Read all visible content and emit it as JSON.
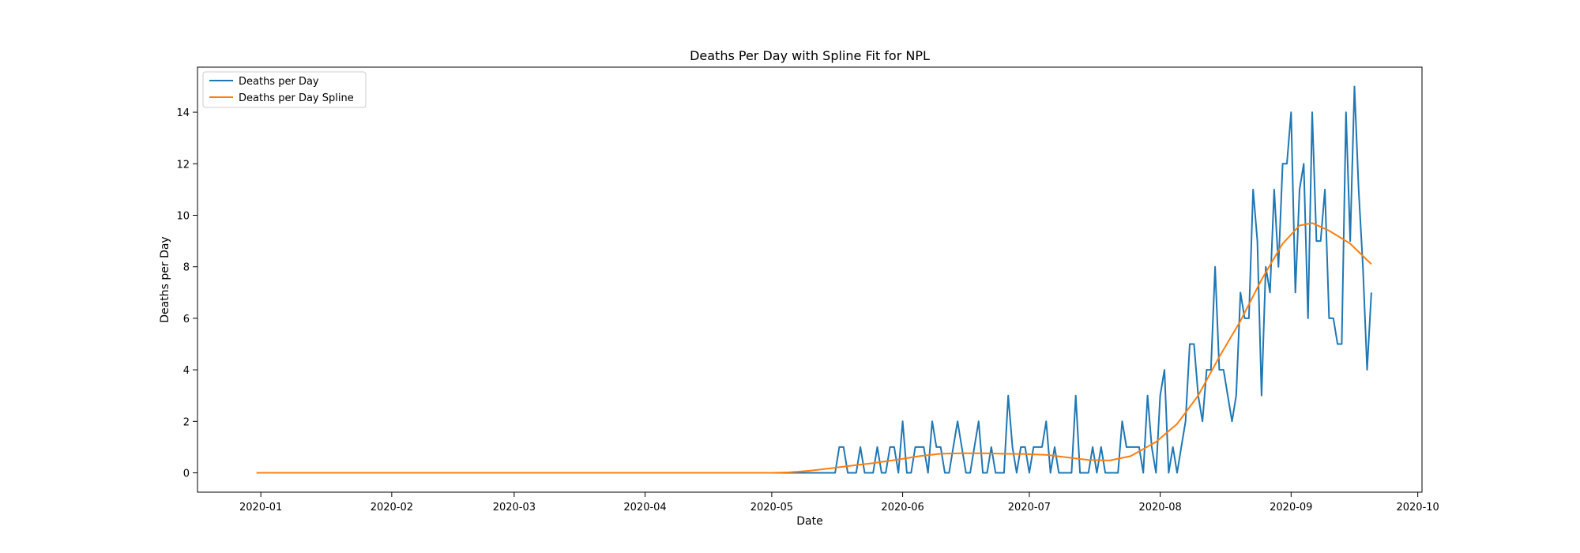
{
  "chart_data": {
    "type": "line",
    "title": "Deaths Per Day with Spline Fit for NPL",
    "xlabel": "Date",
    "ylabel": "Deaths per Day",
    "x_type": "date",
    "xlim": [
      "2019-12-17",
      "2020-10-02"
    ],
    "ylim": [
      -0.75,
      15.75
    ],
    "x_ticks": [
      "2020-01",
      "2020-02",
      "2020-03",
      "2020-04",
      "2020-05",
      "2020-06",
      "2020-07",
      "2020-08",
      "2020-09",
      "2020-10"
    ],
    "x_tick_dates": [
      "2020-01-01",
      "2020-02-01",
      "2020-03-01",
      "2020-04-01",
      "2020-05-01",
      "2020-06-01",
      "2020-07-01",
      "2020-08-01",
      "2020-09-01",
      "2020-10-01"
    ],
    "y_ticks": [
      0,
      2,
      4,
      6,
      8,
      10,
      12,
      14
    ],
    "y_tick_labels": [
      "0",
      "2",
      "4",
      "6",
      "8",
      "10",
      "12",
      "14"
    ],
    "grid": false,
    "legend_position": "top-left",
    "series": [
      {
        "name": "Deaths per Day",
        "color": "#1f77b4",
        "points": [
          [
            "2019-12-31",
            0
          ],
          [
            "2020-05-16",
            0
          ],
          [
            "2020-05-17",
            1
          ],
          [
            "2020-05-18",
            1
          ],
          [
            "2020-05-19",
            0
          ],
          [
            "2020-05-20",
            0
          ],
          [
            "2020-05-21",
            0
          ],
          [
            "2020-05-22",
            1
          ],
          [
            "2020-05-23",
            0
          ],
          [
            "2020-05-24",
            0
          ],
          [
            "2020-05-25",
            0
          ],
          [
            "2020-05-26",
            1
          ],
          [
            "2020-05-27",
            0
          ],
          [
            "2020-05-28",
            0
          ],
          [
            "2020-05-29",
            1
          ],
          [
            "2020-05-30",
            1
          ],
          [
            "2020-05-31",
            0
          ],
          [
            "2020-06-01",
            2
          ],
          [
            "2020-06-02",
            0
          ],
          [
            "2020-06-03",
            0
          ],
          [
            "2020-06-04",
            1
          ],
          [
            "2020-06-05",
            1
          ],
          [
            "2020-06-06",
            1
          ],
          [
            "2020-06-07",
            0
          ],
          [
            "2020-06-08",
            2
          ],
          [
            "2020-06-09",
            1
          ],
          [
            "2020-06-10",
            1
          ],
          [
            "2020-06-11",
            0
          ],
          [
            "2020-06-12",
            0
          ],
          [
            "2020-06-13",
            1
          ],
          [
            "2020-06-14",
            2
          ],
          [
            "2020-06-15",
            1
          ],
          [
            "2020-06-16",
            0
          ],
          [
            "2020-06-17",
            0
          ],
          [
            "2020-06-18",
            1
          ],
          [
            "2020-06-19",
            2
          ],
          [
            "2020-06-20",
            0
          ],
          [
            "2020-06-21",
            0
          ],
          [
            "2020-06-22",
            1
          ],
          [
            "2020-06-23",
            0
          ],
          [
            "2020-06-24",
            0
          ],
          [
            "2020-06-25",
            0
          ],
          [
            "2020-06-26",
            3
          ],
          [
            "2020-06-27",
            1
          ],
          [
            "2020-06-28",
            0
          ],
          [
            "2020-06-29",
            1
          ],
          [
            "2020-06-30",
            1
          ],
          [
            "2020-07-01",
            0
          ],
          [
            "2020-07-02",
            1
          ],
          [
            "2020-07-03",
            1
          ],
          [
            "2020-07-04",
            1
          ],
          [
            "2020-07-05",
            2
          ],
          [
            "2020-07-06",
            0
          ],
          [
            "2020-07-07",
            1
          ],
          [
            "2020-07-08",
            0
          ],
          [
            "2020-07-09",
            0
          ],
          [
            "2020-07-10",
            0
          ],
          [
            "2020-07-11",
            0
          ],
          [
            "2020-07-12",
            3
          ],
          [
            "2020-07-13",
            0
          ],
          [
            "2020-07-14",
            0
          ],
          [
            "2020-07-15",
            0
          ],
          [
            "2020-07-16",
            1
          ],
          [
            "2020-07-17",
            0
          ],
          [
            "2020-07-18",
            1
          ],
          [
            "2020-07-19",
            0
          ],
          [
            "2020-07-20",
            0
          ],
          [
            "2020-07-21",
            0
          ],
          [
            "2020-07-22",
            0
          ],
          [
            "2020-07-23",
            2
          ],
          [
            "2020-07-24",
            1
          ],
          [
            "2020-07-25",
            1
          ],
          [
            "2020-07-26",
            1
          ],
          [
            "2020-07-27",
            1
          ],
          [
            "2020-07-28",
            0
          ],
          [
            "2020-07-29",
            3
          ],
          [
            "2020-07-30",
            1
          ],
          [
            "2020-07-31",
            0
          ],
          [
            "2020-08-01",
            3
          ],
          [
            "2020-08-02",
            4
          ],
          [
            "2020-08-03",
            0
          ],
          [
            "2020-08-04",
            1
          ],
          [
            "2020-08-05",
            0
          ],
          [
            "2020-08-06",
            1
          ],
          [
            "2020-08-07",
            2
          ],
          [
            "2020-08-08",
            5
          ],
          [
            "2020-08-09",
            5
          ],
          [
            "2020-08-10",
            3
          ],
          [
            "2020-08-11",
            2
          ],
          [
            "2020-08-12",
            4
          ],
          [
            "2020-08-13",
            4
          ],
          [
            "2020-08-14",
            8
          ],
          [
            "2020-08-15",
            4
          ],
          [
            "2020-08-16",
            4
          ],
          [
            "2020-08-17",
            3
          ],
          [
            "2020-08-18",
            2
          ],
          [
            "2020-08-19",
            3
          ],
          [
            "2020-08-20",
            7
          ],
          [
            "2020-08-21",
            6
          ],
          [
            "2020-08-22",
            6
          ],
          [
            "2020-08-23",
            11
          ],
          [
            "2020-08-24",
            9
          ],
          [
            "2020-08-25",
            3
          ],
          [
            "2020-08-26",
            8
          ],
          [
            "2020-08-27",
            7
          ],
          [
            "2020-08-28",
            11
          ],
          [
            "2020-08-29",
            8
          ],
          [
            "2020-08-30",
            12
          ],
          [
            "2020-08-31",
            12
          ],
          [
            "2020-09-01",
            14
          ],
          [
            "2020-09-02",
            7
          ],
          [
            "2020-09-03",
            11
          ],
          [
            "2020-09-04",
            12
          ],
          [
            "2020-09-05",
            6
          ],
          [
            "2020-09-06",
            14
          ],
          [
            "2020-09-07",
            9
          ],
          [
            "2020-09-08",
            9
          ],
          [
            "2020-09-09",
            11
          ],
          [
            "2020-09-10",
            6
          ],
          [
            "2020-09-11",
            6
          ],
          [
            "2020-09-12",
            5
          ],
          [
            "2020-09-13",
            5
          ],
          [
            "2020-09-14",
            14
          ],
          [
            "2020-09-15",
            9
          ],
          [
            "2020-09-16",
            15
          ],
          [
            "2020-09-17",
            11
          ],
          [
            "2020-09-18",
            8
          ],
          [
            "2020-09-19",
            4
          ],
          [
            "2020-09-20",
            7
          ]
        ]
      },
      {
        "name": "Deaths per Day Spline",
        "color": "#ff7f0e",
        "points": [
          [
            "2019-12-31",
            0.0
          ],
          [
            "2020-01-15",
            0.0
          ],
          [
            "2020-02-01",
            0.0
          ],
          [
            "2020-03-01",
            0.0
          ],
          [
            "2020-04-01",
            0.0
          ],
          [
            "2020-05-01",
            0.0
          ],
          [
            "2020-05-05",
            0.02
          ],
          [
            "2020-05-10",
            0.08
          ],
          [
            "2020-05-15",
            0.18
          ],
          [
            "2020-05-20",
            0.28
          ],
          [
            "2020-05-25",
            0.38
          ],
          [
            "2020-05-31",
            0.52
          ],
          [
            "2020-06-05",
            0.65
          ],
          [
            "2020-06-10",
            0.74
          ],
          [
            "2020-06-15",
            0.76
          ],
          [
            "2020-06-20",
            0.76
          ],
          [
            "2020-06-25",
            0.74
          ],
          [
            "2020-06-30",
            0.73
          ],
          [
            "2020-07-05",
            0.7
          ],
          [
            "2020-07-10",
            0.6
          ],
          [
            "2020-07-15",
            0.5
          ],
          [
            "2020-07-20",
            0.48
          ],
          [
            "2020-07-25",
            0.65
          ],
          [
            "2020-07-31",
            1.2
          ],
          [
            "2020-08-05",
            1.9
          ],
          [
            "2020-08-10",
            3.0
          ],
          [
            "2020-08-15",
            4.5
          ],
          [
            "2020-08-20",
            5.9
          ],
          [
            "2020-08-25",
            7.5
          ],
          [
            "2020-08-30",
            8.9
          ],
          [
            "2020-09-03",
            9.6
          ],
          [
            "2020-09-06",
            9.7
          ],
          [
            "2020-09-10",
            9.4
          ],
          [
            "2020-09-15",
            8.9
          ],
          [
            "2020-09-20",
            8.1
          ]
        ]
      }
    ]
  }
}
